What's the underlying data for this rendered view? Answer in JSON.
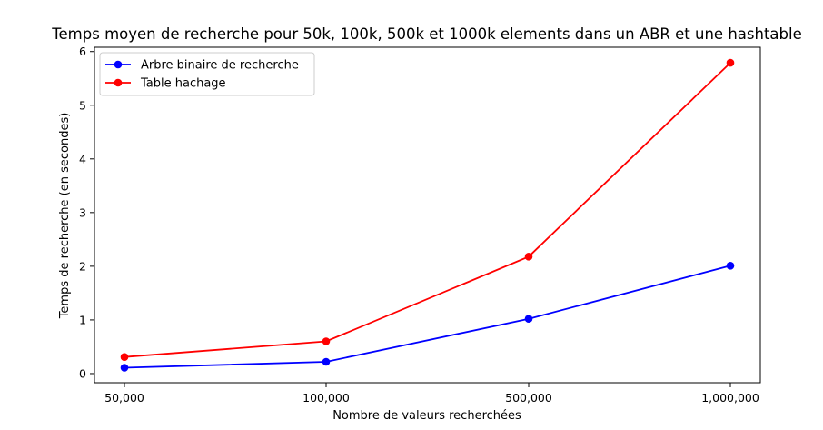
{
  "chart_data": {
    "type": "line",
    "title": "Temps moyen de recherche pour 50k, 100k, 500k et 1000k elements dans un ABR et une hashtable",
    "xlabel": "Nombre de valeurs recherchées",
    "ylabel": "Temps de recherche (en secondes)",
    "categories": [
      "50,000",
      "100,000",
      "500,000",
      "1,000,000"
    ],
    "ylim": [
      -0.17,
      6.08
    ],
    "yticks": [
      0,
      1,
      2,
      3,
      4,
      5,
      6
    ],
    "grid": false,
    "legend_position": "top-left",
    "series": [
      {
        "name": "Arbre binaire de recherche",
        "color": "#0000ff",
        "values": [
          0.11,
          0.22,
          1.02,
          2.01
        ]
      },
      {
        "name": "Table hachage",
        "color": "#ff0000",
        "values": [
          0.31,
          0.6,
          2.18,
          5.79
        ]
      }
    ]
  }
}
